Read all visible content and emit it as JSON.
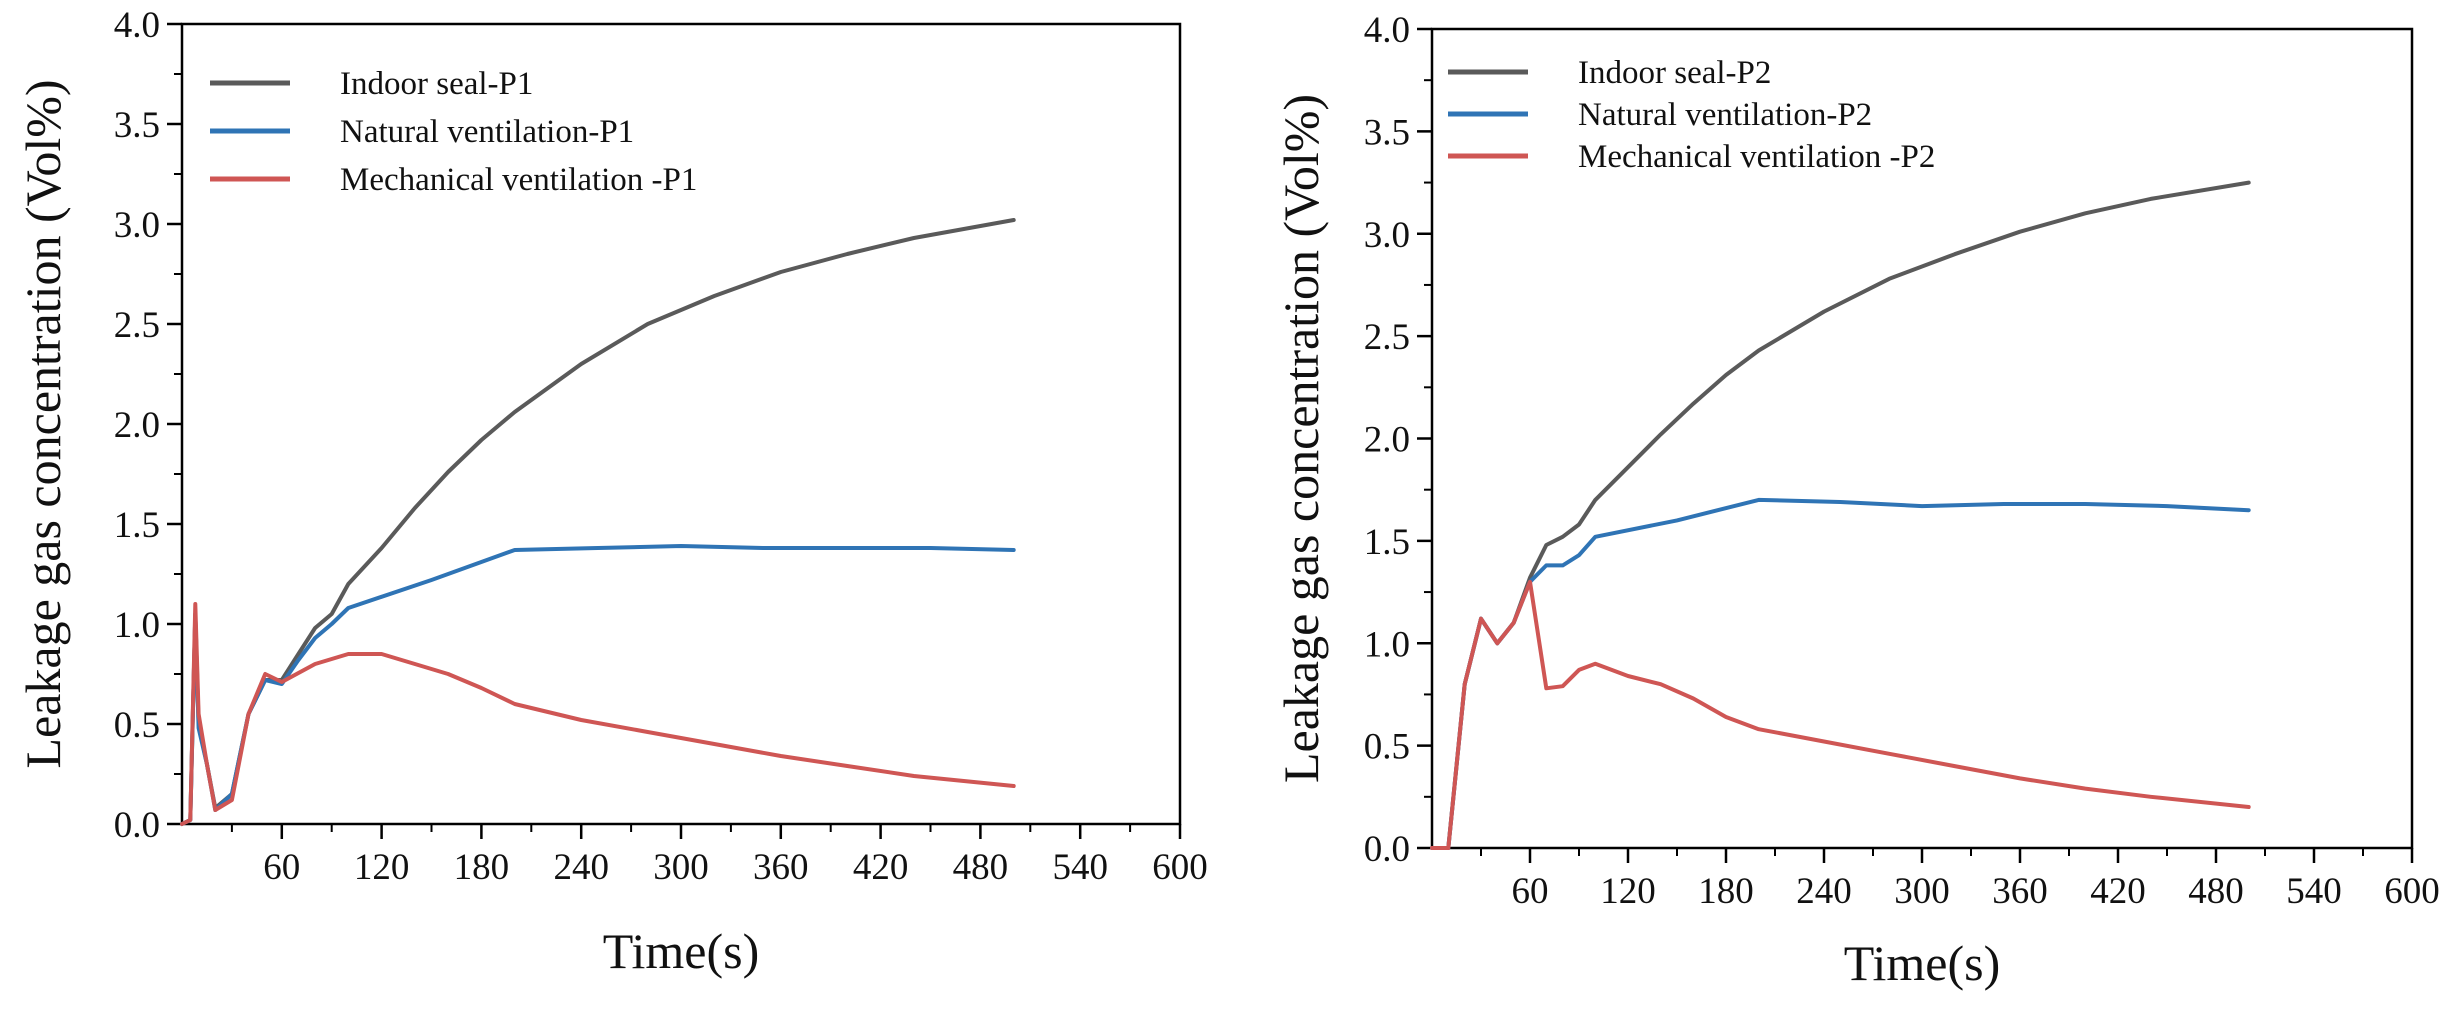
{
  "colors": {
    "indoor_seal": "#5a5a5a",
    "natural_ventilation": "#2f74b5",
    "mechanical_ventilation": "#cf5654",
    "axis": "#000000"
  },
  "chart_data": [
    {
      "type": "line",
      "title": "",
      "xlabel": "Time(s)",
      "ylabel": "Leakage gas concentration (Vol%)",
      "xlim": [
        0,
        600
      ],
      "ylim": [
        0,
        4.0
      ],
      "xticks": [
        60,
        120,
        180,
        240,
        300,
        360,
        420,
        480,
        540,
        600
      ],
      "xtick_labels": [
        "60",
        "120",
        "180",
        "240",
        "300",
        "360",
        "420",
        "480",
        "540",
        "600"
      ],
      "yticks": [
        0.0,
        0.5,
        1.0,
        1.5,
        2.0,
        2.5,
        3.0,
        3.5,
        4.0
      ],
      "ytick_labels": [
        "0.0",
        "0.5",
        "1.0",
        "1.5",
        "2.0",
        "2.5",
        "3.0",
        "3.5",
        "4.0"
      ],
      "legend_position": "top-left",
      "series": [
        {
          "name": "Indoor seal-P1",
          "color_key": "indoor_seal",
          "x": [
            0,
            5,
            8,
            10,
            15,
            20,
            30,
            40,
            50,
            60,
            70,
            80,
            90,
            100,
            120,
            140,
            160,
            180,
            200,
            240,
            280,
            320,
            360,
            400,
            440,
            500
          ],
          "y": [
            0.0,
            0.02,
            1.05,
            0.5,
            0.3,
            0.08,
            0.15,
            0.55,
            0.72,
            0.72,
            0.85,
            0.98,
            1.05,
            1.2,
            1.38,
            1.58,
            1.76,
            1.92,
            2.06,
            2.3,
            2.5,
            2.64,
            2.76,
            2.85,
            2.93,
            3.02
          ]
        },
        {
          "name": "Natural ventilation-P1",
          "color_key": "natural_ventilation",
          "x": [
            0,
            5,
            8,
            10,
            15,
            20,
            30,
            40,
            50,
            60,
            70,
            80,
            90,
            100,
            150,
            200,
            250,
            300,
            350,
            400,
            450,
            500
          ],
          "y": [
            0.0,
            0.02,
            1.05,
            0.48,
            0.3,
            0.07,
            0.15,
            0.55,
            0.72,
            0.7,
            0.82,
            0.93,
            1.0,
            1.08,
            1.22,
            1.37,
            1.38,
            1.39,
            1.38,
            1.38,
            1.38,
            1.37
          ]
        },
        {
          "name": "Mechanical ventilation -P1",
          "color_key": "mechanical_ventilation",
          "x": [
            0,
            5,
            8,
            10,
            15,
            20,
            30,
            40,
            50,
            60,
            80,
            100,
            120,
            140,
            160,
            180,
            200,
            240,
            280,
            320,
            360,
            400,
            440,
            500
          ],
          "y": [
            0.0,
            0.02,
            1.1,
            0.55,
            0.3,
            0.07,
            0.12,
            0.55,
            0.75,
            0.71,
            0.8,
            0.85,
            0.85,
            0.8,
            0.75,
            0.68,
            0.6,
            0.52,
            0.46,
            0.4,
            0.34,
            0.29,
            0.24,
            0.19
          ]
        }
      ]
    },
    {
      "type": "line",
      "title": "",
      "xlabel": "Time(s)",
      "ylabel": "Leakage gas concentration (Vol%)",
      "xlim": [
        0,
        600
      ],
      "ylim": [
        0,
        4.0
      ],
      "xticks": [
        60,
        120,
        180,
        240,
        300,
        360,
        420,
        480,
        540,
        600
      ],
      "xtick_labels": [
        "60",
        "120",
        "180",
        "240",
        "300",
        "360",
        "420",
        "480",
        "540",
        "600"
      ],
      "yticks": [
        0.0,
        0.5,
        1.0,
        1.5,
        2.0,
        2.5,
        3.0,
        3.5,
        4.0
      ],
      "ytick_labels": [
        "0.0",
        "0.5",
        "1.0",
        "1.5",
        "2.0",
        "2.5",
        "3.0",
        "3.5",
        "4.0"
      ],
      "legend_position": "top-left",
      "series": [
        {
          "name": "Indoor seal-P2",
          "color_key": "indoor_seal",
          "x": [
            0,
            10,
            20,
            30,
            40,
            50,
            60,
            70,
            80,
            90,
            100,
            120,
            140,
            160,
            180,
            200,
            240,
            280,
            320,
            360,
            400,
            440,
            500
          ],
          "y": [
            0.0,
            0.0,
            0.8,
            1.12,
            1.0,
            1.1,
            1.32,
            1.48,
            1.52,
            1.58,
            1.7,
            1.86,
            2.02,
            2.17,
            2.31,
            2.43,
            2.62,
            2.78,
            2.9,
            3.01,
            3.1,
            3.17,
            3.25
          ]
        },
        {
          "name": "Natural ventilation-P2",
          "color_key": "natural_ventilation",
          "x": [
            0,
            10,
            20,
            30,
            40,
            50,
            60,
            70,
            80,
            90,
            100,
            150,
            200,
            250,
            300,
            350,
            400,
            450,
            500
          ],
          "y": [
            0.0,
            0.0,
            0.8,
            1.12,
            1.0,
            1.1,
            1.3,
            1.38,
            1.38,
            1.43,
            1.52,
            1.6,
            1.7,
            1.69,
            1.67,
            1.68,
            1.68,
            1.67,
            1.65
          ]
        },
        {
          "name": "Mechanical ventilation -P2",
          "color_key": "mechanical_ventilation",
          "x": [
            0,
            10,
            20,
            30,
            40,
            50,
            60,
            70,
            80,
            90,
            100,
            120,
            140,
            160,
            180,
            200,
            240,
            280,
            320,
            360,
            400,
            440,
            500
          ],
          "y": [
            0.0,
            0.0,
            0.8,
            1.12,
            1.0,
            1.1,
            1.3,
            0.78,
            0.79,
            0.87,
            0.9,
            0.84,
            0.8,
            0.73,
            0.64,
            0.58,
            0.52,
            0.46,
            0.4,
            0.34,
            0.29,
            0.25,
            0.2
          ]
        }
      ]
    }
  ]
}
